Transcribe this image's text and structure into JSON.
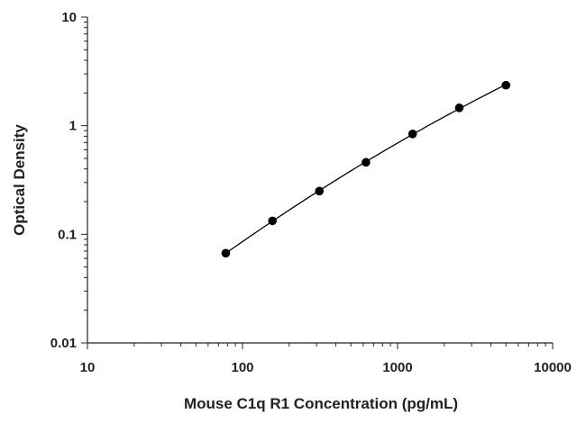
{
  "chart_data": {
    "type": "scatter",
    "title": "",
    "xlabel": "Mouse C1q R1 Concentration (pg/mL)",
    "ylabel": "Optical Density",
    "xscale": "log",
    "yscale": "log",
    "xlim": [
      10,
      10000
    ],
    "ylim": [
      0.01,
      10
    ],
    "x_tick_labels": [
      "10",
      "100",
      "1000",
      "10000"
    ],
    "y_tick_labels": [
      "0.01",
      "0.1",
      "1",
      "10"
    ],
    "grid": false,
    "legend": "none",
    "fit_line": true,
    "series": [
      {
        "x": [
          78,
          156,
          313,
          625,
          1250,
          2500,
          5000
        ],
        "y": [
          0.067,
          0.133,
          0.25,
          0.46,
          0.84,
          1.46,
          2.36
        ]
      }
    ],
    "colors": {
      "marker": "#000000",
      "line": "#000000",
      "axis": "#222222"
    }
  }
}
